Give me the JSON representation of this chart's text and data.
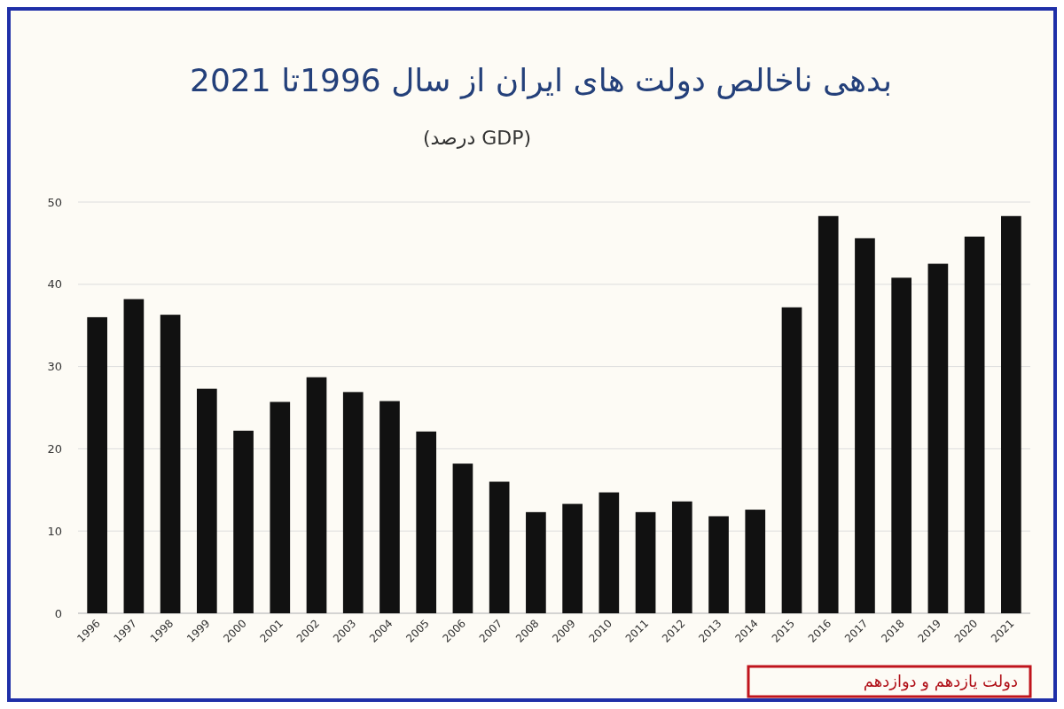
{
  "chart_data": {
    "type": "bar",
    "title": "بدهی ناخالص دولت های ایران از سال 1996تا 2021",
    "subtitle": "(درصد GDP)",
    "categories": [
      "1996",
      "1997",
      "1998",
      "1999",
      "2000",
      "2001",
      "2002",
      "2003",
      "2004",
      "2005",
      "2006",
      "2007",
      "2008",
      "2009",
      "2010",
      "2011",
      "2012",
      "2013",
      "2014",
      "2015",
      "2016",
      "2017",
      "2018",
      "2019",
      "2020",
      "2021"
    ],
    "values": [
      36.0,
      38.2,
      36.3,
      27.3,
      22.2,
      25.7,
      28.7,
      26.9,
      25.8,
      22.1,
      18.2,
      16.0,
      12.3,
      13.3,
      14.7,
      12.3,
      13.6,
      11.8,
      12.6,
      37.2,
      48.3,
      45.6,
      40.8,
      42.5,
      45.8,
      48.3
    ],
    "color": "#111111",
    "ylim": [
      0,
      50
    ],
    "yticks": [
      0,
      10,
      20,
      30,
      40,
      50
    ],
    "grid": "y",
    "annotations": [
      "دولت یازدهم و دوازدهم"
    ]
  }
}
